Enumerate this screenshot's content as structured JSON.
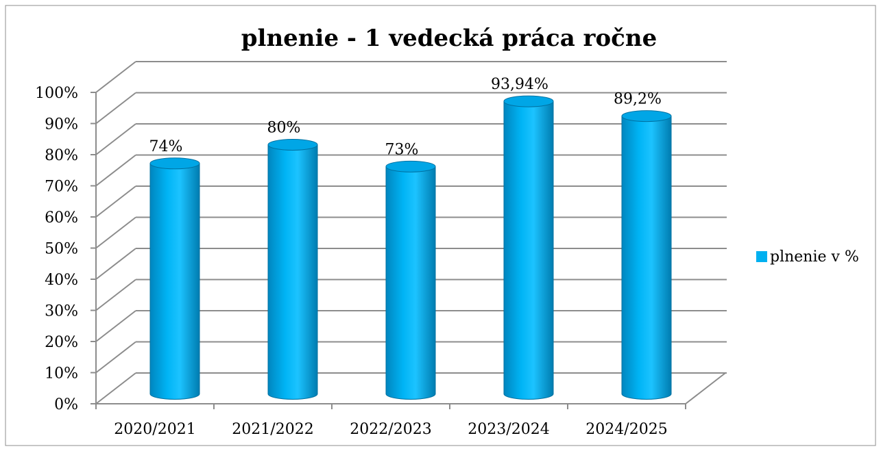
{
  "chart_data": {
    "type": "bar3d",
    "title": "plnenie - 1 vedecká práca ročne",
    "categories": [
      "2020/2021",
      "2021/2022",
      "2022/2023",
      "2023/2024",
      "2024/2025"
    ],
    "series": [
      {
        "name": "plnenie v %",
        "color": "#00b0f0",
        "values": [
          74,
          80,
          73,
          93.94,
          89.2
        ],
        "value_labels": [
          "74%",
          "80%",
          "73%",
          "93,94%",
          "89,2%"
        ]
      }
    ],
    "ylim": [
      0,
      100
    ],
    "yticks": [
      {
        "value": 0,
        "label": "0%"
      },
      {
        "value": 10,
        "label": "10%"
      },
      {
        "value": 20,
        "label": "20%"
      },
      {
        "value": 30,
        "label": "30%"
      },
      {
        "value": 40,
        "label": "40%"
      },
      {
        "value": 50,
        "label": "50%"
      },
      {
        "value": 60,
        "label": "60%"
      },
      {
        "value": 70,
        "label": "70%"
      },
      {
        "value": 80,
        "label": "80%"
      },
      {
        "value": 90,
        "label": "90%"
      },
      {
        "value": 100,
        "label": "100%"
      }
    ],
    "grid": true,
    "legend": "right"
  }
}
